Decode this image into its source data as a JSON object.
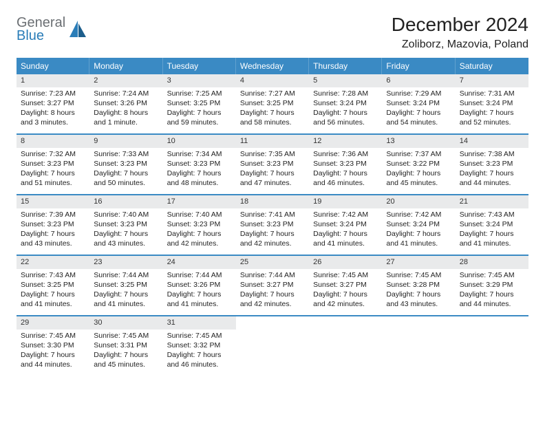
{
  "logo": {
    "word1": "General",
    "word2": "Blue"
  },
  "title": "December 2024",
  "location": "Zoliborz, Mazovia, Poland",
  "colors": {
    "header_bg": "#3a8ac4",
    "band_bg": "#e9eaeb",
    "rule": "#3a8ac4",
    "text": "#222222",
    "logo_gray": "#6b6f73",
    "logo_blue": "#2a7db8"
  },
  "day_headers": [
    "Sunday",
    "Monday",
    "Tuesday",
    "Wednesday",
    "Thursday",
    "Friday",
    "Saturday"
  ],
  "weeks": [
    [
      {
        "n": "1",
        "sr": "Sunrise: 7:23 AM",
        "ss": "Sunset: 3:27 PM",
        "d1": "Daylight: 8 hours",
        "d2": "and 3 minutes."
      },
      {
        "n": "2",
        "sr": "Sunrise: 7:24 AM",
        "ss": "Sunset: 3:26 PM",
        "d1": "Daylight: 8 hours",
        "d2": "and 1 minute."
      },
      {
        "n": "3",
        "sr": "Sunrise: 7:25 AM",
        "ss": "Sunset: 3:25 PM",
        "d1": "Daylight: 7 hours",
        "d2": "and 59 minutes."
      },
      {
        "n": "4",
        "sr": "Sunrise: 7:27 AM",
        "ss": "Sunset: 3:25 PM",
        "d1": "Daylight: 7 hours",
        "d2": "and 58 minutes."
      },
      {
        "n": "5",
        "sr": "Sunrise: 7:28 AM",
        "ss": "Sunset: 3:24 PM",
        "d1": "Daylight: 7 hours",
        "d2": "and 56 minutes."
      },
      {
        "n": "6",
        "sr": "Sunrise: 7:29 AM",
        "ss": "Sunset: 3:24 PM",
        "d1": "Daylight: 7 hours",
        "d2": "and 54 minutes."
      },
      {
        "n": "7",
        "sr": "Sunrise: 7:31 AM",
        "ss": "Sunset: 3:24 PM",
        "d1": "Daylight: 7 hours",
        "d2": "and 52 minutes."
      }
    ],
    [
      {
        "n": "8",
        "sr": "Sunrise: 7:32 AM",
        "ss": "Sunset: 3:23 PM",
        "d1": "Daylight: 7 hours",
        "d2": "and 51 minutes."
      },
      {
        "n": "9",
        "sr": "Sunrise: 7:33 AM",
        "ss": "Sunset: 3:23 PM",
        "d1": "Daylight: 7 hours",
        "d2": "and 50 minutes."
      },
      {
        "n": "10",
        "sr": "Sunrise: 7:34 AM",
        "ss": "Sunset: 3:23 PM",
        "d1": "Daylight: 7 hours",
        "d2": "and 48 minutes."
      },
      {
        "n": "11",
        "sr": "Sunrise: 7:35 AM",
        "ss": "Sunset: 3:23 PM",
        "d1": "Daylight: 7 hours",
        "d2": "and 47 minutes."
      },
      {
        "n": "12",
        "sr": "Sunrise: 7:36 AM",
        "ss": "Sunset: 3:23 PM",
        "d1": "Daylight: 7 hours",
        "d2": "and 46 minutes."
      },
      {
        "n": "13",
        "sr": "Sunrise: 7:37 AM",
        "ss": "Sunset: 3:22 PM",
        "d1": "Daylight: 7 hours",
        "d2": "and 45 minutes."
      },
      {
        "n": "14",
        "sr": "Sunrise: 7:38 AM",
        "ss": "Sunset: 3:23 PM",
        "d1": "Daylight: 7 hours",
        "d2": "and 44 minutes."
      }
    ],
    [
      {
        "n": "15",
        "sr": "Sunrise: 7:39 AM",
        "ss": "Sunset: 3:23 PM",
        "d1": "Daylight: 7 hours",
        "d2": "and 43 minutes."
      },
      {
        "n": "16",
        "sr": "Sunrise: 7:40 AM",
        "ss": "Sunset: 3:23 PM",
        "d1": "Daylight: 7 hours",
        "d2": "and 43 minutes."
      },
      {
        "n": "17",
        "sr": "Sunrise: 7:40 AM",
        "ss": "Sunset: 3:23 PM",
        "d1": "Daylight: 7 hours",
        "d2": "and 42 minutes."
      },
      {
        "n": "18",
        "sr": "Sunrise: 7:41 AM",
        "ss": "Sunset: 3:23 PM",
        "d1": "Daylight: 7 hours",
        "d2": "and 42 minutes."
      },
      {
        "n": "19",
        "sr": "Sunrise: 7:42 AM",
        "ss": "Sunset: 3:24 PM",
        "d1": "Daylight: 7 hours",
        "d2": "and 41 minutes."
      },
      {
        "n": "20",
        "sr": "Sunrise: 7:42 AM",
        "ss": "Sunset: 3:24 PM",
        "d1": "Daylight: 7 hours",
        "d2": "and 41 minutes."
      },
      {
        "n": "21",
        "sr": "Sunrise: 7:43 AM",
        "ss": "Sunset: 3:24 PM",
        "d1": "Daylight: 7 hours",
        "d2": "and 41 minutes."
      }
    ],
    [
      {
        "n": "22",
        "sr": "Sunrise: 7:43 AM",
        "ss": "Sunset: 3:25 PM",
        "d1": "Daylight: 7 hours",
        "d2": "and 41 minutes."
      },
      {
        "n": "23",
        "sr": "Sunrise: 7:44 AM",
        "ss": "Sunset: 3:25 PM",
        "d1": "Daylight: 7 hours",
        "d2": "and 41 minutes."
      },
      {
        "n": "24",
        "sr": "Sunrise: 7:44 AM",
        "ss": "Sunset: 3:26 PM",
        "d1": "Daylight: 7 hours",
        "d2": "and 41 minutes."
      },
      {
        "n": "25",
        "sr": "Sunrise: 7:44 AM",
        "ss": "Sunset: 3:27 PM",
        "d1": "Daylight: 7 hours",
        "d2": "and 42 minutes."
      },
      {
        "n": "26",
        "sr": "Sunrise: 7:45 AM",
        "ss": "Sunset: 3:27 PM",
        "d1": "Daylight: 7 hours",
        "d2": "and 42 minutes."
      },
      {
        "n": "27",
        "sr": "Sunrise: 7:45 AM",
        "ss": "Sunset: 3:28 PM",
        "d1": "Daylight: 7 hours",
        "d2": "and 43 minutes."
      },
      {
        "n": "28",
        "sr": "Sunrise: 7:45 AM",
        "ss": "Sunset: 3:29 PM",
        "d1": "Daylight: 7 hours",
        "d2": "and 44 minutes."
      }
    ],
    [
      {
        "n": "29",
        "sr": "Sunrise: 7:45 AM",
        "ss": "Sunset: 3:30 PM",
        "d1": "Daylight: 7 hours",
        "d2": "and 44 minutes."
      },
      {
        "n": "30",
        "sr": "Sunrise: 7:45 AM",
        "ss": "Sunset: 3:31 PM",
        "d1": "Daylight: 7 hours",
        "d2": "and 45 minutes."
      },
      {
        "n": "31",
        "sr": "Sunrise: 7:45 AM",
        "ss": "Sunset: 3:32 PM",
        "d1": "Daylight: 7 hours",
        "d2": "and 46 minutes."
      },
      null,
      null,
      null,
      null
    ]
  ]
}
